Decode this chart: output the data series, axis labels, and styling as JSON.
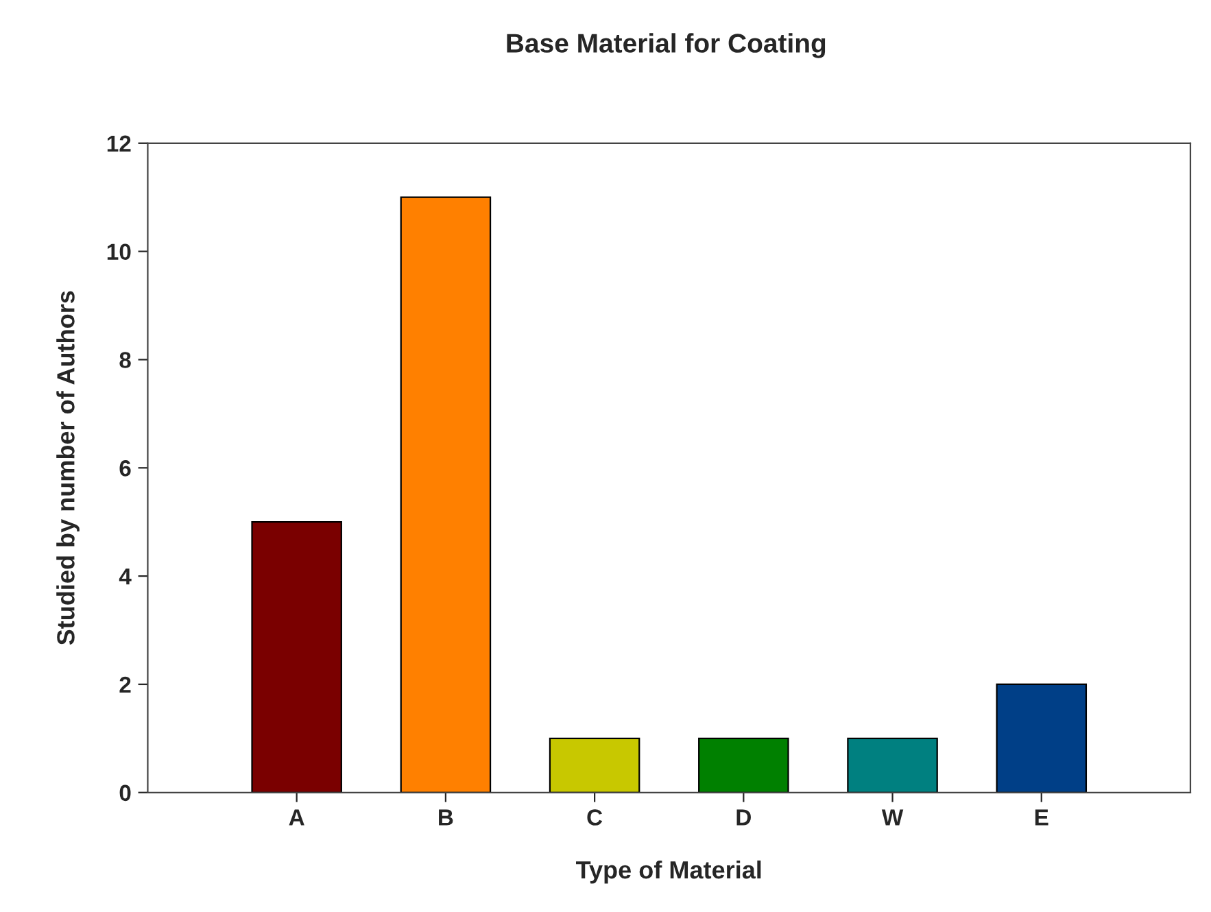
{
  "chart_data": {
    "type": "bar",
    "title": "Base Material for Coating",
    "xlabel": "Type of Material",
    "ylabel": "Studied by number of Authors",
    "categories": [
      "A",
      "B",
      "C",
      "D",
      "W",
      "E"
    ],
    "values": [
      5,
      11,
      1,
      1,
      1,
      2
    ],
    "colors": [
      "#7a0000",
      "#ff8000",
      "#c8c800",
      "#008000",
      "#008080",
      "#003f87"
    ],
    "ylim": [
      0,
      12
    ],
    "yticks": [
      0,
      2,
      4,
      6,
      8,
      10,
      12
    ],
    "grid": false,
    "legend": false
  }
}
